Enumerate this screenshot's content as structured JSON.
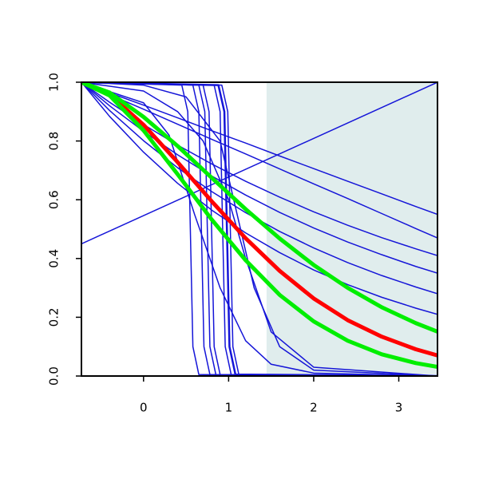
{
  "chart_data": {
    "type": "line",
    "xlim": [
      -0.73,
      3.455
    ],
    "ylim": [
      0,
      1
    ],
    "xticks": [
      0,
      1,
      2,
      3
    ],
    "yticks": [
      {
        "value": 0,
        "label": "0.0"
      },
      0.2,
      0.4,
      0.6,
      0.8,
      {
        "value": 1,
        "label": "1.0"
      }
    ],
    "shaded_region": {
      "xlim": [
        1.446,
        3.455
      ],
      "color": "#e0eded"
    },
    "series": [
      {
        "color": "#1515d8",
        "width": 1.5,
        "x": [
          -0.73,
          3.455
        ],
        "values": [
          0.45,
          1.0
        ]
      },
      {
        "color": "#1515d8",
        "width": 1.5,
        "x": [
          -0.73,
          -0.4,
          0,
          0.4,
          0.8,
          1.2,
          1.6,
          2.0,
          2.4,
          2.8,
          3.2,
          3.455
        ],
        "values": [
          1,
          0.964,
          0.922,
          0.879,
          0.835,
          0.793,
          0.749,
          0.706,
          0.663,
          0.62,
          0.577,
          0.55
        ]
      },
      {
        "color": "#1515d8",
        "width": 1.5,
        "x": [
          -0.73,
          -0.4,
          0,
          0.4,
          0.8,
          1.2,
          1.6,
          2.0,
          2.4,
          2.8,
          3.2,
          3.455
        ],
        "values": [
          1,
          0.958,
          0.908,
          0.857,
          0.806,
          0.756,
          0.705,
          0.654,
          0.604,
          0.553,
          0.502,
          0.47
        ]
      },
      {
        "color": "#1515d8",
        "width": 1.5,
        "x": [
          -0.73,
          -0.4,
          0,
          0.4,
          0.8,
          1.2,
          1.6,
          2.0,
          2.4,
          2.8,
          3.2,
          3.455
        ],
        "values": [
          1,
          0.932,
          0.856,
          0.786,
          0.722,
          0.663,
          0.609,
          0.559,
          0.513,
          0.471,
          0.433,
          0.41
        ]
      },
      {
        "color": "#1515d8",
        "width": 1.5,
        "x": [
          -0.73,
          -0.4,
          0,
          0.4,
          0.8,
          1.2,
          1.6,
          2.0,
          2.4,
          2.8,
          3.2,
          3.455
        ],
        "values": [
          1,
          0.92,
          0.833,
          0.753,
          0.681,
          0.616,
          0.557,
          0.504,
          0.456,
          0.413,
          0.373,
          0.35
        ]
      },
      {
        "color": "#1515d8",
        "width": 1.5,
        "x": [
          -0.73,
          -0.4,
          0,
          0.4,
          0.8,
          1.2,
          1.6,
          2.0,
          2.4,
          2.8,
          3.2,
          3.455
        ],
        "values": [
          1,
          0.904,
          0.801,
          0.709,
          0.628,
          0.556,
          0.492,
          0.436,
          0.386,
          0.342,
          0.303,
          0.28
        ]
      },
      {
        "color": "#1515d8",
        "width": 1.5,
        "x": [
          -0.73,
          -0.4,
          0,
          0.4,
          0.8,
          1.2,
          1.6,
          2.0,
          2.4,
          2.8,
          3.2,
          3.455
        ],
        "values": [
          1,
          0.884,
          0.762,
          0.656,
          0.565,
          0.487,
          0.42,
          0.361,
          0.311,
          0.268,
          0.231,
          0.21
        ]
      },
      {
        "color": "#1515d8",
        "width": 1.5,
        "x": [
          -0.73,
          0,
          0.4,
          0.7,
          1.0,
          1.2,
          1.5,
          2,
          3.455
        ],
        "values": [
          1,
          0.97,
          0.9,
          0.8,
          0.6,
          0.4,
          0.15,
          0.03,
          0
        ]
      },
      {
        "color": "#1515d8",
        "width": 1.5,
        "x": [
          -0.73,
          0,
          0.5,
          0.9,
          1.1,
          1.3,
          1.6,
          2,
          3.455
        ],
        "values": [
          1,
          0.99,
          0.95,
          0.8,
          0.55,
          0.3,
          0.1,
          0.02,
          0
        ]
      },
      {
        "color": "#1515d8",
        "width": 1.5,
        "x": [
          -0.73,
          0,
          0.3,
          0.6,
          0.9,
          1.2,
          1.5,
          2,
          3.455
        ],
        "values": [
          1,
          0.93,
          0.82,
          0.55,
          0.3,
          0.12,
          0.04,
          0.01,
          0
        ]
      },
      {
        "color": "#1515d8",
        "width": 1.5,
        "x": [
          -0.73,
          0.45,
          0.52,
          0.55,
          0.58,
          0.65,
          3.455
        ],
        "values": [
          1,
          0.99,
          0.9,
          0.5,
          0.1,
          0.005,
          0
        ]
      },
      {
        "color": "#1515d8",
        "width": 1.5,
        "x": [
          -0.73,
          0.58,
          0.65,
          0.68,
          0.71,
          0.78,
          3.455
        ],
        "values": [
          1,
          0.99,
          0.9,
          0.5,
          0.1,
          0.005,
          0
        ]
      },
      {
        "color": "#1515d8",
        "width": 1.5,
        "x": [
          -0.73,
          0.65,
          0.72,
          0.75,
          0.78,
          0.85,
          3.455
        ],
        "values": [
          1,
          0.99,
          0.9,
          0.5,
          0.1,
          0.005,
          0
        ]
      },
      {
        "color": "#1515d8",
        "width": 1.5,
        "x": [
          -0.73,
          0.7,
          0.77,
          0.8,
          0.83,
          0.9,
          3.455
        ],
        "values": [
          1,
          0.99,
          0.9,
          0.5,
          0.1,
          0.005,
          0
        ]
      },
      {
        "color": "#1515d8",
        "width": 1.5,
        "x": [
          -0.73,
          0.83,
          0.9,
          0.93,
          0.96,
          1.03,
          3.455
        ],
        "values": [
          1,
          0.99,
          0.9,
          0.5,
          0.1,
          0.005,
          0
        ]
      },
      {
        "color": "#1515d8",
        "width": 2.5,
        "x": [
          -0.73,
          0.88,
          0.95,
          0.98,
          1.01,
          1.08,
          3.455
        ],
        "values": [
          1,
          0.99,
          0.9,
          0.5,
          0.1,
          0.005,
          0
        ]
      },
      {
        "color": "#1515d8",
        "width": 1.5,
        "x": [
          -0.73,
          0.92,
          0.99,
          1.02,
          1.05,
          1.12,
          3.455
        ],
        "values": [
          1,
          0.99,
          0.9,
          0.5,
          0.1,
          0.005,
          0
        ]
      },
      {
        "color": "#ff0000",
        "width": 5,
        "x": [
          -0.73,
          -0.4,
          0,
          0.4,
          0.8,
          1.2,
          1.6,
          2.0,
          2.4,
          2.8,
          3.2,
          3.455
        ],
        "values": [
          1,
          0.958,
          0.855,
          0.728,
          0.595,
          0.469,
          0.358,
          0.264,
          0.19,
          0.134,
          0.091,
          0.07
        ]
      },
      {
        "color": "#00ee00",
        "width": 5,
        "x": [
          -0.73,
          -0.4,
          0,
          0.4,
          0.8,
          1.2,
          1.6,
          2.0,
          2.4,
          2.8,
          3.2,
          3.455
        ],
        "values": [
          1,
          0.955,
          0.836,
          0.687,
          0.533,
          0.394,
          0.276,
          0.186,
          0.12,
          0.074,
          0.044,
          0.031
        ]
      },
      {
        "color": "#00ee00",
        "width": 5,
        "x": [
          -0.73,
          -0.4,
          0,
          0.4,
          0.8,
          1.2,
          1.6,
          2.0,
          2.4,
          2.8,
          3.2,
          3.455
        ],
        "values": [
          1,
          0.965,
          0.882,
          0.783,
          0.675,
          0.568,
          0.468,
          0.378,
          0.3,
          0.234,
          0.18,
          0.151
        ]
      }
    ]
  }
}
